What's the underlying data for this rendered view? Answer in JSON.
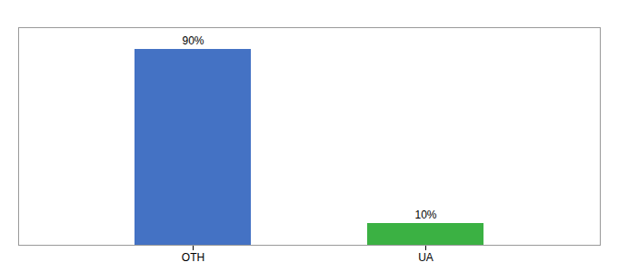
{
  "chart_data": {
    "type": "bar",
    "categories": [
      "OTH",
      "UA"
    ],
    "values": [
      90,
      10
    ],
    "value_labels": [
      "90%",
      "10%"
    ],
    "colors": [
      "#4472c4",
      "#3bb143"
    ],
    "data_labels": true,
    "ylim": [
      0,
      100
    ],
    "tick_labels": "x"
  }
}
